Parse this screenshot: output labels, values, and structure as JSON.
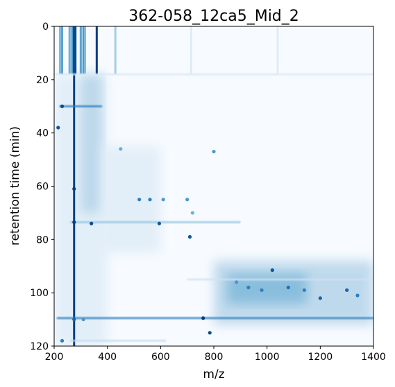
{
  "chart_data": {
    "type": "heatmap",
    "title": "362-058_12ca5_Mid_2",
    "xlabel": "m/z",
    "ylabel": "retention time (min)",
    "xlim": [
      200,
      1400
    ],
    "ylim": [
      120,
      0
    ],
    "y_inverted": true,
    "colormap": "Blues",
    "grid": false,
    "x_ticks": [
      200,
      400,
      600,
      800,
      1000,
      1200,
      1400
    ],
    "y_ticks": [
      0,
      20,
      40,
      60,
      80,
      100,
      120
    ],
    "vertical_streaks": [
      {
        "mz": 222,
        "t0": 0,
        "t1": 18,
        "intensity": 0.45
      },
      {
        "mz": 230,
        "t0": 0,
        "t1": 18,
        "intensity": 0.55
      },
      {
        "mz": 258,
        "t0": 0,
        "t1": 18,
        "intensity": 0.5
      },
      {
        "mz": 268,
        "t0": 0,
        "t1": 18,
        "intensity": 0.6
      },
      {
        "mz": 275,
        "t0": 0,
        "t1": 120,
        "intensity": 0.95
      },
      {
        "mz": 280,
        "t0": 0,
        "t1": 18,
        "intensity": 0.9
      },
      {
        "mz": 300,
        "t0": 0,
        "t1": 18,
        "intensity": 0.55
      },
      {
        "mz": 310,
        "t0": 0,
        "t1": 18,
        "intensity": 0.6
      },
      {
        "mz": 316,
        "t0": 0,
        "t1": 18,
        "intensity": 0.45
      },
      {
        "mz": 360,
        "t0": 0,
        "t1": 18,
        "intensity": 0.95
      },
      {
        "mz": 430,
        "t0": 0,
        "t1": 18,
        "intensity": 0.35
      },
      {
        "mz": 715,
        "t0": 0,
        "t1": 18,
        "intensity": 0.12
      },
      {
        "mz": 1040,
        "t0": 0,
        "t1": 18,
        "intensity": 0.12
      }
    ],
    "broad_regions": [
      {
        "mz0": 200,
        "mz1": 400,
        "t0": 18,
        "t1": 120,
        "intensity": 0.12
      },
      {
        "mz0": 300,
        "mz1": 380,
        "t0": 18,
        "t1": 70,
        "intensity": 0.3
      },
      {
        "mz0": 380,
        "mz1": 600,
        "t0": 45,
        "t1": 85,
        "intensity": 0.12
      },
      {
        "mz0": 800,
        "mz1": 1400,
        "t0": 88,
        "t1": 112,
        "intensity": 0.3
      },
      {
        "mz0": 850,
        "mz1": 1150,
        "t0": 93,
        "t1": 104,
        "intensity": 0.45
      }
    ],
    "horizontal_lines": [
      {
        "t": 18,
        "mz0": 200,
        "mz1": 1400,
        "intensity": 0.15
      },
      {
        "t": 30,
        "mz0": 220,
        "mz1": 380,
        "intensity": 0.7
      },
      {
        "t": 73.5,
        "mz0": 260,
        "mz1": 900,
        "intensity": 0.4
      },
      {
        "t": 95,
        "mz0": 700,
        "mz1": 1400,
        "intensity": 0.2
      },
      {
        "t": 109.5,
        "mz0": 210,
        "mz1": 1400,
        "intensity": 0.7
      },
      {
        "t": 118,
        "mz0": 260,
        "mz1": 620,
        "intensity": 0.25
      }
    ],
    "spots": [
      {
        "mz": 230,
        "t": 30,
        "intensity": 0.9
      },
      {
        "mz": 215,
        "t": 38,
        "intensity": 0.85
      },
      {
        "mz": 275,
        "t": 61,
        "intensity": 0.95
      },
      {
        "mz": 275,
        "t": 73.5,
        "intensity": 0.95
      },
      {
        "mz": 340,
        "t": 74,
        "intensity": 0.9
      },
      {
        "mz": 595,
        "t": 74,
        "intensity": 0.85
      },
      {
        "mz": 710,
        "t": 79,
        "intensity": 0.85
      },
      {
        "mz": 760,
        "t": 109.5,
        "intensity": 0.95
      },
      {
        "mz": 785,
        "t": 115,
        "intensity": 0.9
      },
      {
        "mz": 1020,
        "t": 91.5,
        "intensity": 0.85
      },
      {
        "mz": 520,
        "t": 65,
        "intensity": 0.7
      },
      {
        "mz": 560,
        "t": 65,
        "intensity": 0.7
      },
      {
        "mz": 610,
        "t": 65,
        "intensity": 0.6
      },
      {
        "mz": 700,
        "t": 65,
        "intensity": 0.6
      },
      {
        "mz": 800,
        "t": 47,
        "intensity": 0.6
      },
      {
        "mz": 450,
        "t": 46,
        "intensity": 0.5
      },
      {
        "mz": 1200,
        "t": 102,
        "intensity": 0.8
      },
      {
        "mz": 1300,
        "t": 99,
        "intensity": 0.8
      },
      {
        "mz": 1340,
        "t": 101,
        "intensity": 0.7
      },
      {
        "mz": 1140,
        "t": 99,
        "intensity": 0.7
      },
      {
        "mz": 1080,
        "t": 98,
        "intensity": 0.75
      },
      {
        "mz": 980,
        "t": 99,
        "intensity": 0.7
      },
      {
        "mz": 930,
        "t": 98,
        "intensity": 0.7
      },
      {
        "mz": 885,
        "t": 96,
        "intensity": 0.6
      },
      {
        "mz": 275,
        "t": 110,
        "intensity": 0.8
      },
      {
        "mz": 310,
        "t": 110,
        "intensity": 0.6
      },
      {
        "mz": 720,
        "t": 70,
        "intensity": 0.5
      },
      {
        "mz": 230,
        "t": 118,
        "intensity": 0.7
      }
    ]
  }
}
